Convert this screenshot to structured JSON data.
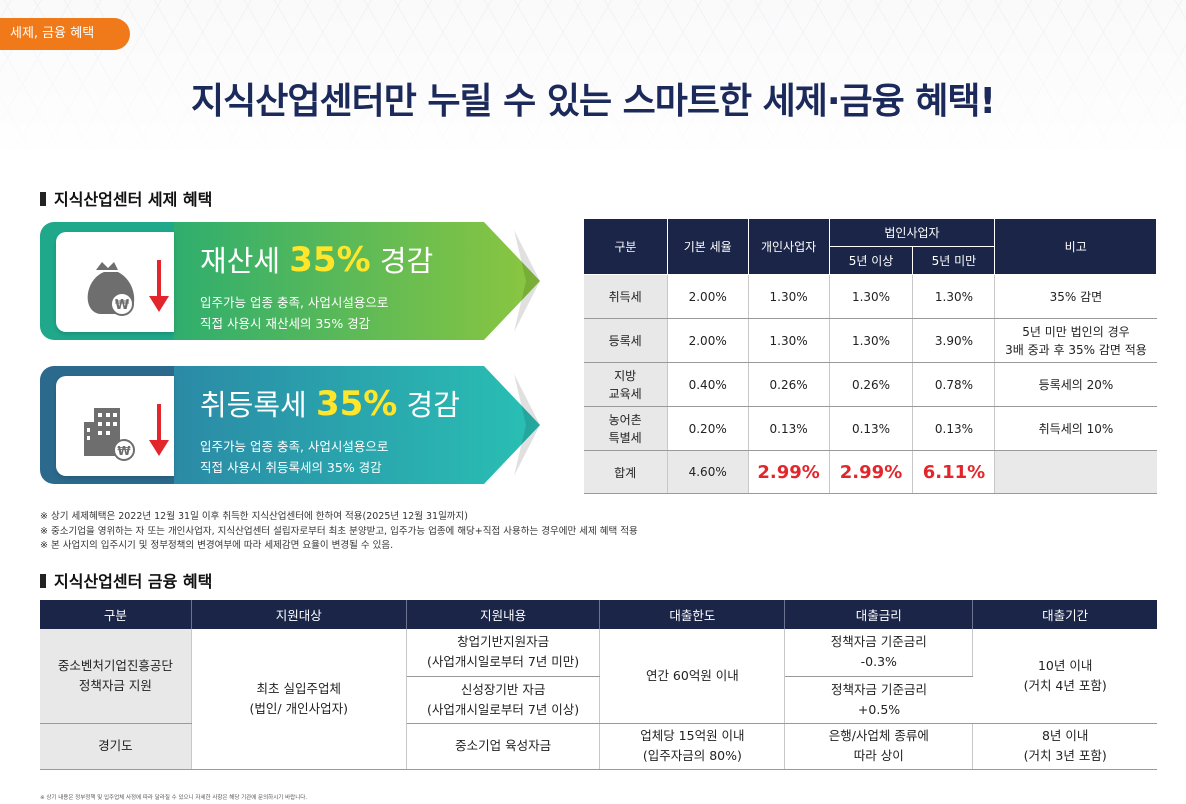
{
  "header": {
    "tag": "세제, 금융 혜택",
    "title": "지식산업센터만 누릴 수 있는 스마트한 세제·금융 혜택!"
  },
  "tax_section": {
    "heading": "지식산업센터 세제 혜택",
    "cards": [
      {
        "name_pre": "재산세 ",
        "pct": "35%",
        "name_post": " 경감",
        "line1": "입주가능 업종 충족, 사업시설용으로",
        "line2": "직접 사용시 재산세의 35% 경감",
        "color_a": "#1fa88a",
        "color_b": "#7cc143",
        "icon": "money-bag-icon"
      },
      {
        "name_pre": "취등록세 ",
        "pct": "35%",
        "name_post": " 경감",
        "line1": "입주가능 업종 충족, 사업시설용으로",
        "line2": "직접 사용시 취등록세의 35% 경감",
        "color_a": "#2b6a8c",
        "color_b": "#25b8b2",
        "icon": "building-icon"
      }
    ],
    "table": {
      "headers": {
        "col1": "구분",
        "col2": "기본 세율",
        "col3": "개인사업자",
        "col4": "법인사업자",
        "col4a": "5년 이상",
        "col4b": "5년 미만",
        "col5": "비고"
      },
      "rows": [
        {
          "label": "취득세",
          "base": "2.00%",
          "indiv": "1.30%",
          "c5up": "1.30%",
          "c5under": "1.30%",
          "note": "35% 감면"
        },
        {
          "label": "등록세",
          "base": "2.00%",
          "indiv": "1.30%",
          "c5up": "1.30%",
          "c5under": "3.90%",
          "note": "5년 미만 법인의 경우\n3배 중과 후 35% 감면 적용"
        },
        {
          "label": "지방\n교육세",
          "base": "0.40%",
          "indiv": "0.26%",
          "c5up": "0.26%",
          "c5under": "0.78%",
          "note": "등록세의 20%"
        },
        {
          "label": "농어촌\n특별세",
          "base": "0.20%",
          "indiv": "0.13%",
          "c5up": "0.13%",
          "c5under": "0.13%",
          "note": "취득세의 10%"
        }
      ],
      "sum": {
        "label": "합계",
        "base": "4.60%",
        "indiv": "2.99%",
        "c5up": "2.99%",
        "c5under": "6.11%",
        "note": ""
      }
    },
    "notes": [
      "※ 상기 세제혜택은 2022년 12월 31일 이후 취득한 지식산업센터에 한하여 적용(2025년 12월 31일까지)",
      "※ 중소기업을 영위하는 자 또는 개인사업자, 지식산업센터 설립자로부터 최초 분양받고, 입주가능 업종에 해당+직접 사용하는 경우에만 세제 혜택 적용",
      "※ 본 사업지의 입주시기 및 정부정책의 변경여부에 따라 세제감면 요율이 변경될 수 있음."
    ]
  },
  "finance_section": {
    "heading": "지식산업센터 금융 혜택",
    "headers": [
      "구분",
      "지원대상",
      "지원내용",
      "대출한도",
      "대출금리",
      "대출기간"
    ],
    "row1_label": "중소벤처기업진흥공단\n정책자금 지원",
    "row2_label": "경기도",
    "target": "최초 실입주업체\n(법인/ 개인사업자)",
    "content1": "창업기반지원자금\n(사업개시일로부터 7년 미만)",
    "content2": "신성장기반 자금\n(사업개시일로부터 7년 이상)",
    "content3": "중소기업 육성자금",
    "limit1": "연간 60억원 이내",
    "limit2": "업체당 15억원 이내\n(입주자금의 80%)",
    "rate1": "정책자금 기준금리\n-0.3%",
    "rate2": "정책자금 기준금리\n+0.5%",
    "rate3": "은행/사업체 종류에\n따라 상이",
    "period1": "10년 이내\n(거치 4년 포함)",
    "period2": "8년 이내\n(거치 3년 포함)"
  },
  "footer": "※ 상기 내용은 정부정책 및 입주업체 사정에 따라 달라질 수 있으니 자세한 사항은 해당 기관에 문의하시기 바랍니다.",
  "colors": {
    "navy": "#1a2548",
    "orange": "#f07a1a",
    "red": "#e3262c",
    "yellow": "#ffe62b"
  }
}
